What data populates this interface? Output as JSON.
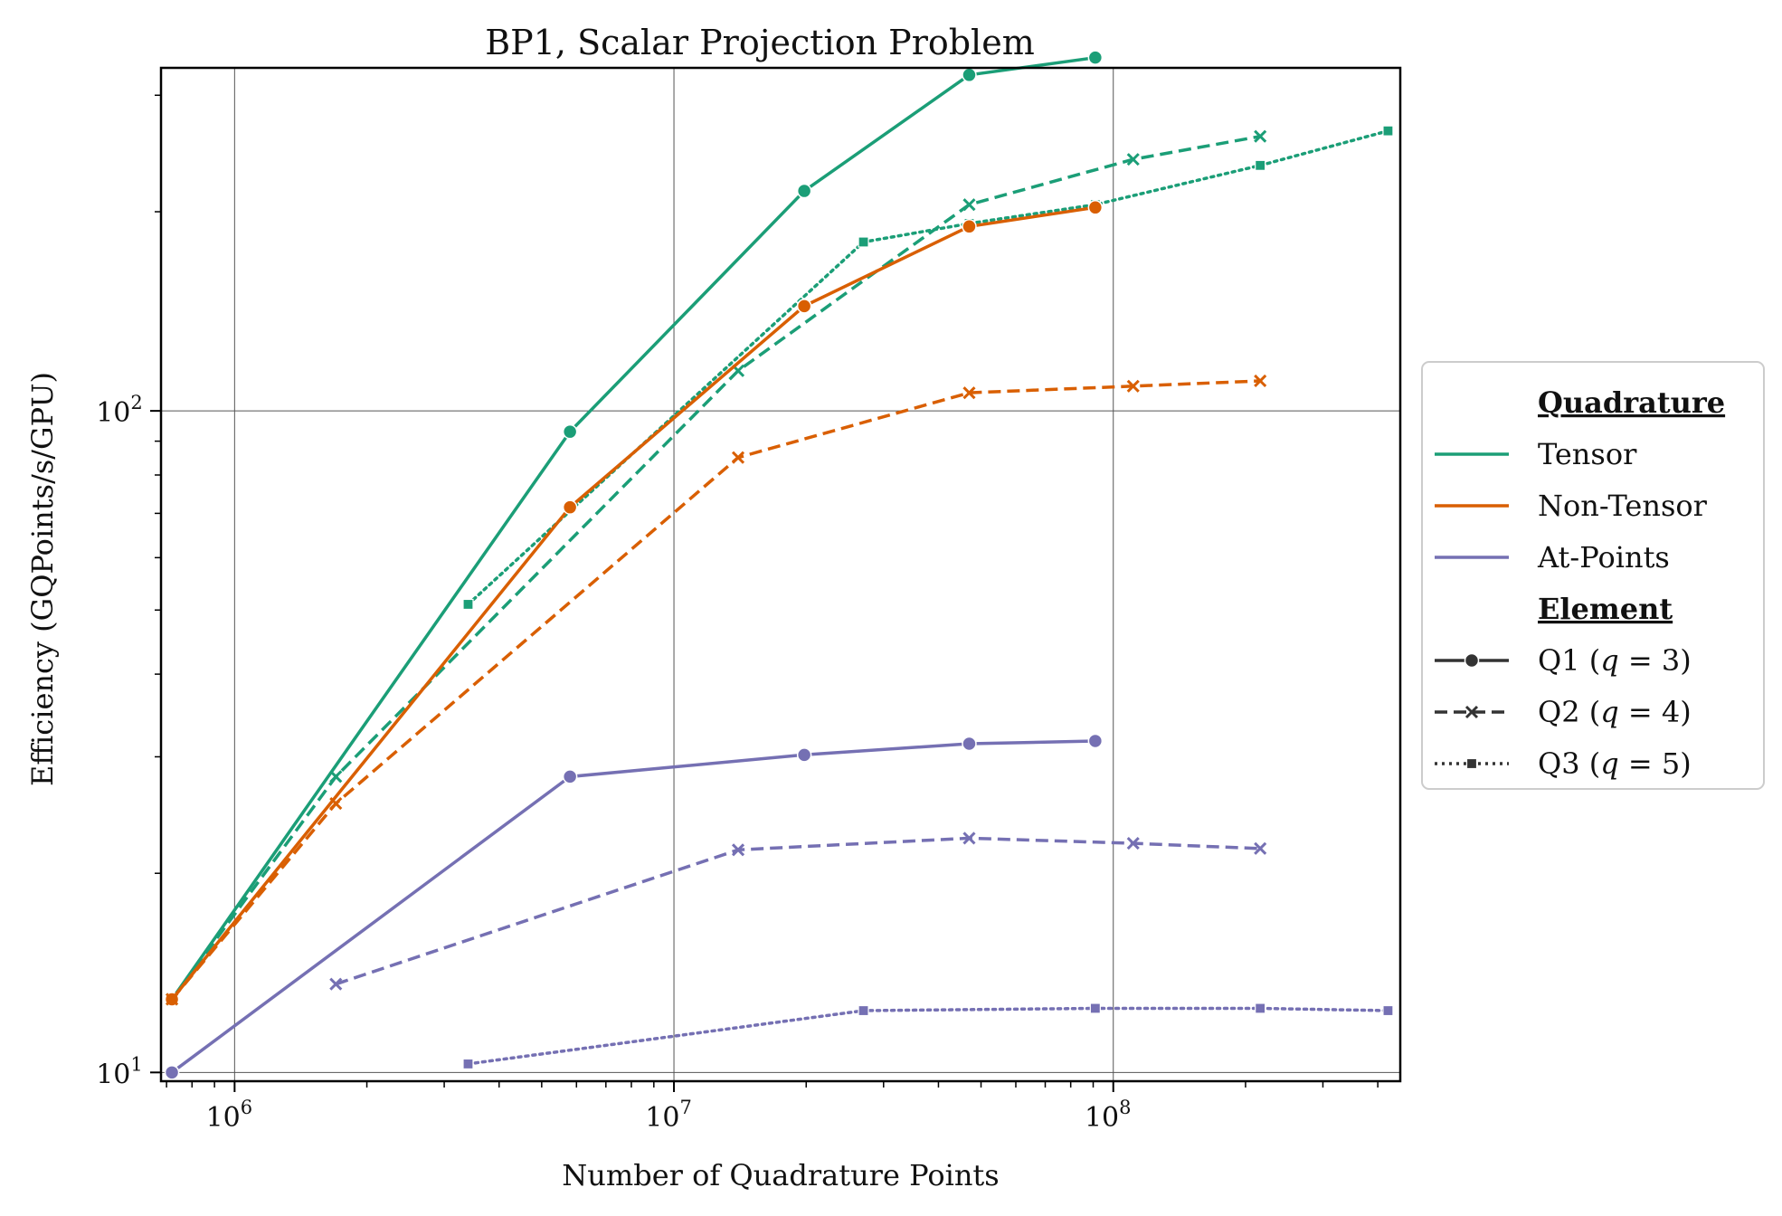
{
  "chart_data": {
    "type": "line",
    "title": "BP1, Scalar Projection Problem",
    "xlabel": "Number of Quadrature Points",
    "ylabel": "Efficiency (GQPoints/s/GPU)",
    "x_scale": "log",
    "y_scale": "log",
    "xlim": [
      680000,
      450000000
    ],
    "ylim": [
      9.7,
      330
    ],
    "x_ticks": [
      {
        "value": 1000000,
        "base": "10",
        "exp": "6"
      },
      {
        "value": 10000000,
        "base": "10",
        "exp": "7"
      },
      {
        "value": 100000000,
        "base": "10",
        "exp": "8"
      }
    ],
    "y_ticks": [
      {
        "value": 10,
        "base": "10",
        "exp": "1"
      },
      {
        "value": 100,
        "base": "10",
        "exp": "2"
      }
    ],
    "grid": true,
    "legend_position": "outside-right",
    "legend": {
      "hue_title": "Quadrature",
      "hue_entries": [
        {
          "label": "Tensor",
          "color": "#1b9e77"
        },
        {
          "label": "Non-Tensor",
          "color": "#d95f02"
        },
        {
          "label": "At-Points",
          "color": "#7570b3"
        }
      ],
      "style_title": "Element",
      "style_entries": [
        {
          "label": "Q1 (q = 3)",
          "prefix": "Q1 (",
          "var": "q",
          "suffix": " = 3)",
          "dash": "solid",
          "marker": "circle"
        },
        {
          "label": "Q2 (q = 4)",
          "prefix": "Q2 (",
          "var": "q",
          "suffix": " = 4)",
          "dash": "dashed",
          "marker": "x"
        },
        {
          "label": "Q3 (q = 5)",
          "prefix": "Q3 (",
          "var": "q",
          "suffix": " = 5)",
          "dash": "dotted",
          "marker": "square"
        }
      ]
    },
    "series": [
      {
        "quadrature": "Tensor",
        "element": "Q1 (q = 3)",
        "color": "#1b9e77",
        "dash": "solid",
        "marker": "circle",
        "x": [
          720000,
          5800000,
          19800000,
          47000000,
          91000000
        ],
        "y": [
          12.9,
          93,
          215,
          322,
          342
        ]
      },
      {
        "quadrature": "Tensor",
        "element": "Q2 (q = 4)",
        "color": "#1b9e77",
        "dash": "dashed",
        "marker": "x",
        "x": [
          720000,
          1700000,
          14000000,
          47000000,
          111000000,
          216000000
        ],
        "y": [
          12.9,
          28,
          115,
          205,
          240,
          260
        ]
      },
      {
        "quadrature": "Tensor",
        "element": "Q3 (q = 5)",
        "color": "#1b9e77",
        "dash": "dotted",
        "marker": "square",
        "x": [
          3400000,
          27000000,
          47000000,
          91000000,
          216000000,
          422000000
        ],
        "y": [
          51,
          180,
          192,
          205,
          235,
          265
        ]
      },
      {
        "quadrature": "Non-Tensor",
        "element": "Q1 (q = 3)",
        "color": "#d95f02",
        "dash": "solid",
        "marker": "circle",
        "x": [
          720000,
          5800000,
          19800000,
          47000000,
          91000000
        ],
        "y": [
          12.9,
          71.5,
          144,
          190,
          203
        ]
      },
      {
        "quadrature": "Non-Tensor",
        "element": "Q2 (q = 4)",
        "color": "#d95f02",
        "dash": "dashed",
        "marker": "x",
        "x": [
          720000,
          1700000,
          14000000,
          47000000,
          111000000,
          216000000
        ],
        "y": [
          12.9,
          25.5,
          85,
          106.5,
          109,
          111
        ]
      },
      {
        "quadrature": "At-Points",
        "element": "Q1 (q = 3)",
        "color": "#7570b3",
        "dash": "solid",
        "marker": "circle",
        "x": [
          720000,
          5800000,
          19800000,
          47000000,
          91000000
        ],
        "y": [
          10,
          28,
          30.2,
          31.4,
          31.7
        ]
      },
      {
        "quadrature": "At-Points",
        "element": "Q2 (q = 4)",
        "color": "#7570b3",
        "dash": "dashed",
        "marker": "x",
        "x": [
          1700000,
          14000000,
          47000000,
          111000000,
          216000000
        ],
        "y": [
          13.6,
          21.7,
          22.6,
          22.2,
          21.8
        ]
      },
      {
        "quadrature": "At-Points",
        "element": "Q3 (q = 5)",
        "color": "#7570b3",
        "dash": "dotted",
        "marker": "square",
        "x": [
          3400000,
          27000000,
          91000000,
          216000000,
          422000000
        ],
        "y": [
          10.3,
          12.4,
          12.5,
          12.5,
          12.4
        ]
      }
    ]
  }
}
